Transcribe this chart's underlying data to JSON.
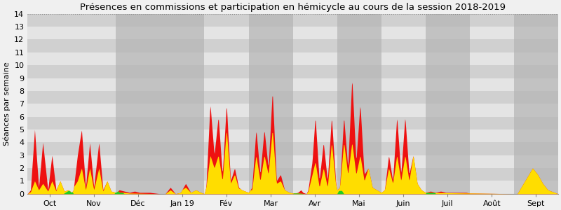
{
  "title": "Présences en commissions et participation en hémicycle au cours de la session 2018-2019",
  "ylabel": "Séances par semaine",
  "xlabels": [
    "Oct",
    "Nov",
    "Déc",
    "Jan 19",
    "Fév",
    "Mar",
    "Avr",
    "Mai",
    "Juin",
    "Juil",
    "Août",
    "Sept"
  ],
  "ylim": [
    0,
    14
  ],
  "yticks": [
    0,
    1,
    2,
    3,
    4,
    5,
    6,
    7,
    8,
    9,
    10,
    11,
    12,
    13,
    14
  ],
  "bg_light": "#e8e8e8",
  "bg_dark": "#d0d0d0",
  "gray_band_color": "#b8b8b8",
  "color_red": "#ee1111",
  "color_yellow": "#ffdd00",
  "color_green": "#22cc22",
  "title_fontsize": 9.5,
  "axis_fontsize": 8,
  "ylabel_fontsize": 8,
  "month_boundaries": [
    0,
    4.33,
    8.67,
    13,
    17.33,
    21.67,
    26,
    30.33,
    34.67,
    39,
    43.33,
    47.67,
    52
  ],
  "gray_band_months": [
    2,
    3,
    5,
    7,
    9,
    11
  ],
  "total_weeks": 52
}
